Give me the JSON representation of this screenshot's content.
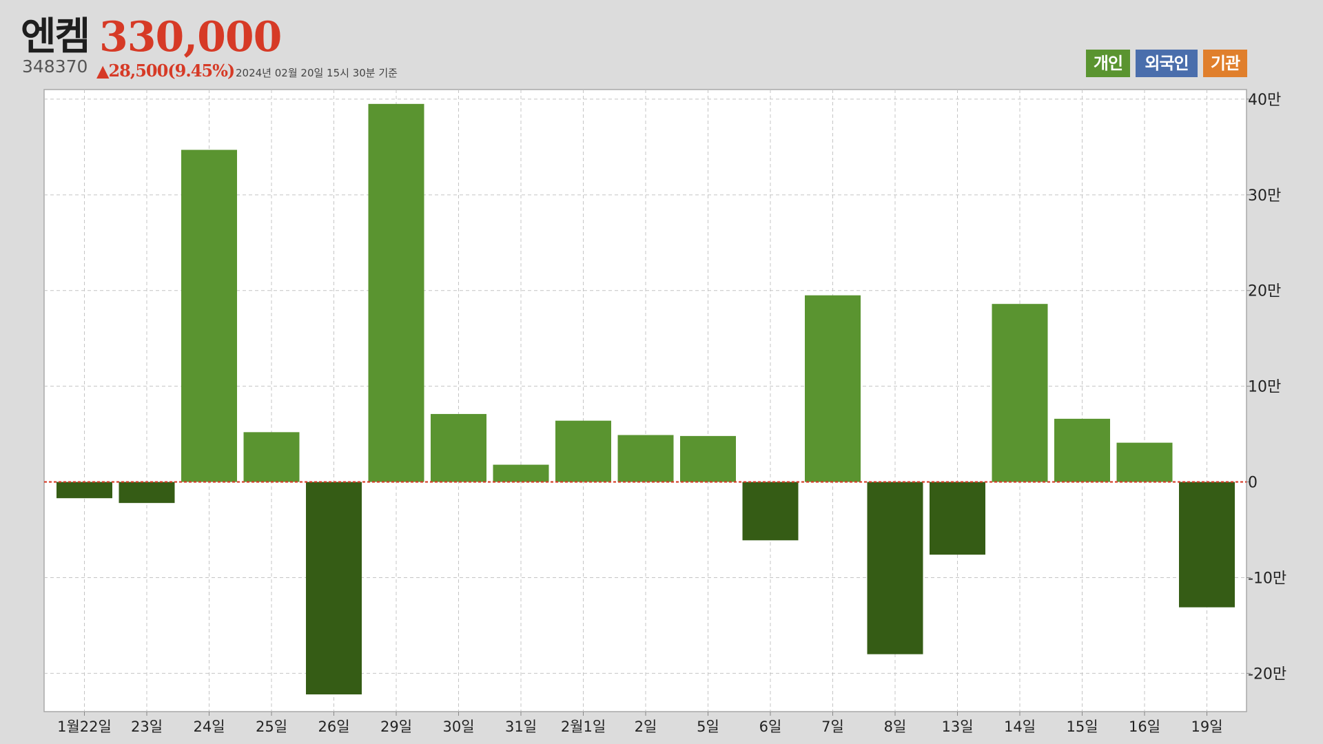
{
  "header": {
    "stock_name": "엔켐",
    "price": "330,000",
    "code": "348370",
    "change": "▲28,500(9.45%)",
    "timestamp": "2024년 02월 20일 15시 30분 기준"
  },
  "legend": {
    "items": [
      {
        "label": "개인",
        "color": "#5a9430"
      },
      {
        "label": "외국인",
        "color": "#4a6eac"
      },
      {
        "label": "기관",
        "color": "#e07f2c"
      }
    ]
  },
  "colors": {
    "positive_bar": "#5a9430",
    "negative_bar": "#355c15",
    "zero_line": "#d63a26",
    "grid": "#c4c4c4",
    "plot_background": "#ffffff"
  },
  "chart_data": {
    "type": "bar",
    "categories": [
      "1월22일",
      "23일",
      "24일",
      "25일",
      "26일",
      "29일",
      "30일",
      "31일",
      "2월1일",
      "2일",
      "5일",
      "6일",
      "7일",
      "8일",
      "13일",
      "14일",
      "15일",
      "16일",
      "19일"
    ],
    "values": [
      -17000,
      -22000,
      347000,
      52000,
      -222000,
      395000,
      71000,
      18000,
      64000,
      49000,
      48000,
      -61000,
      195000,
      -180000,
      -76000,
      186000,
      66000,
      41000,
      -131000
    ],
    "ylim": [
      -240000,
      410000
    ],
    "yticks": [
      -200000,
      -100000,
      0,
      100000,
      200000,
      300000,
      400000
    ],
    "ytick_labels": [
      "-20만",
      "-10만",
      "0",
      "10만",
      "20만",
      "30만",
      "40만"
    ],
    "grid": true,
    "y_axis_position": "right"
  }
}
